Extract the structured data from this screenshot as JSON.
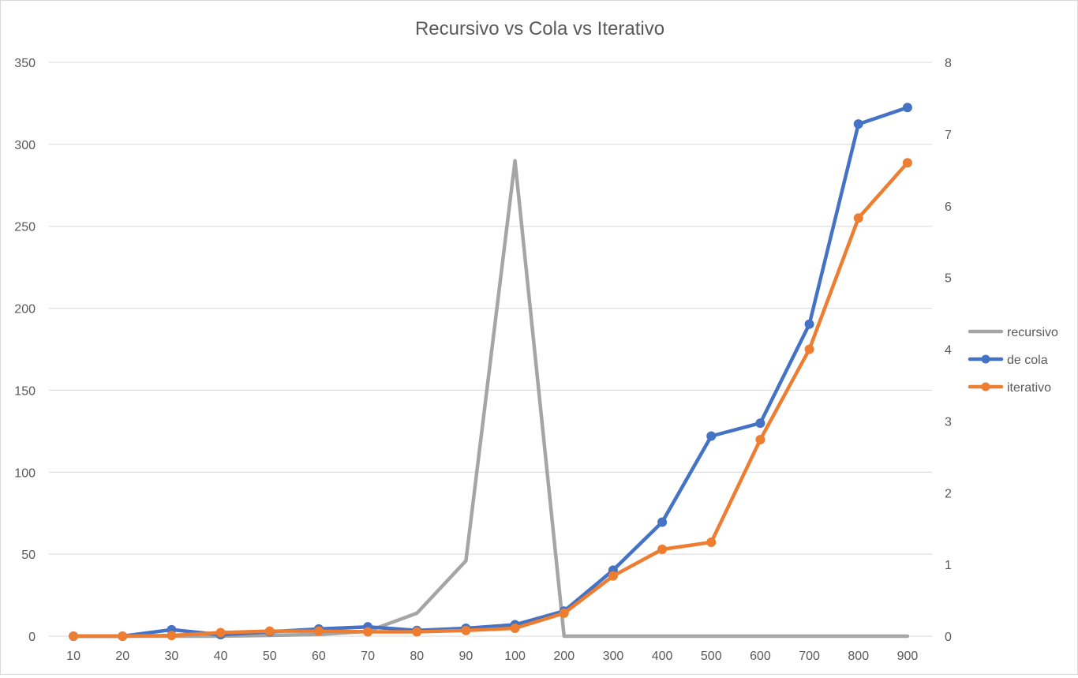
{
  "chart_data": {
    "type": "line",
    "title": "Recursivo vs Cola vs Iterativo",
    "categories": [
      "10",
      "20",
      "30",
      "40",
      "50",
      "60",
      "70",
      "80",
      "90",
      "100",
      "200",
      "300",
      "400",
      "500",
      "600",
      "700",
      "800",
      "900"
    ],
    "y_left": {
      "min": 0,
      "max": 350,
      "ticks": [
        "0",
        "50",
        "100",
        "150",
        "200",
        "250",
        "300",
        "350"
      ]
    },
    "y_right": {
      "min": 0,
      "max": 8,
      "ticks": [
        "0",
        "1",
        "2",
        "3",
        "4",
        "5",
        "6",
        "7",
        "8"
      ]
    },
    "series": [
      {
        "name": "recursivo",
        "axis": "left",
        "color": "#a5a5a5",
        "markers": false,
        "values": [
          0,
          0,
          0,
          0,
          0.5,
          1,
          3,
          14,
          46,
          290,
          0,
          0,
          0,
          0,
          0,
          0,
          0,
          0
        ]
      },
      {
        "name": "de cola",
        "axis": "right",
        "color": "#4472c4",
        "markers": true,
        "values": [
          0.0,
          0.0,
          0.09,
          0.02,
          0.06,
          0.1,
          0.13,
          0.08,
          0.11,
          0.16,
          0.35,
          0.92,
          1.59,
          2.79,
          2.97,
          4.35,
          7.14,
          7.37
        ]
      },
      {
        "name": "iterativo",
        "axis": "right",
        "color": "#ed7d31",
        "markers": true,
        "values": [
          0.0,
          0.0,
          0.01,
          0.05,
          0.07,
          0.07,
          0.06,
          0.06,
          0.08,
          0.11,
          0.32,
          0.84,
          1.21,
          1.31,
          2.74,
          4.0,
          5.83,
          6.6
        ]
      }
    ],
    "legend": {
      "position": "right"
    },
    "grid": true
  }
}
